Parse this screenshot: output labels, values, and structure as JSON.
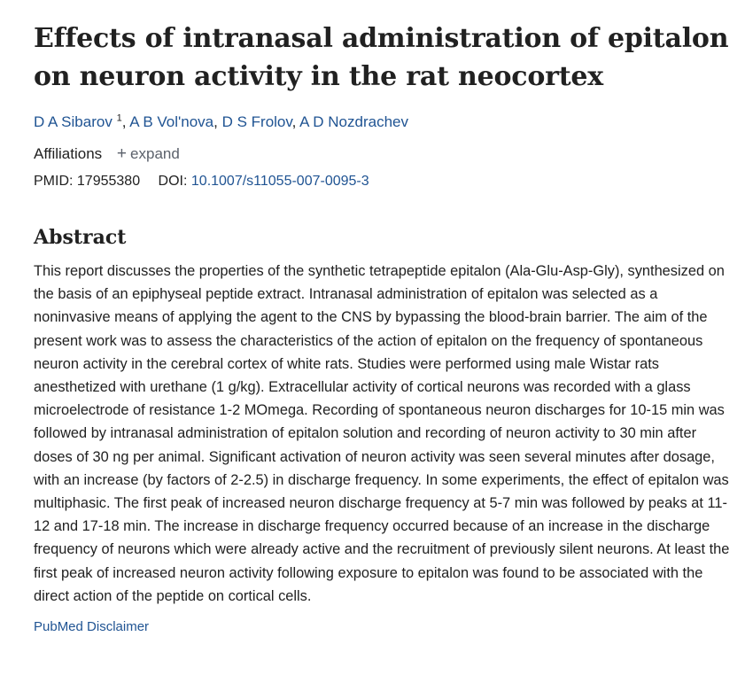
{
  "article": {
    "title": "Effects of intranasal administration of epitalon on neuron activity in the rat neocortex",
    "authors": [
      {
        "name": "D A Sibarov",
        "sup": "1"
      },
      {
        "name": "A B Vol'nova"
      },
      {
        "name": "D S Frolov"
      },
      {
        "name": "A D Nozdrachev"
      }
    ],
    "affiliations_label": "Affiliations",
    "expand_label": "expand",
    "pmid_label": "PMID:",
    "pmid": "17955380",
    "doi_label": "DOI:",
    "doi": "10.1007/s11055-007-0095-3"
  },
  "abstract": {
    "heading": "Abstract",
    "text": "This report discusses the properties of the synthetic tetrapeptide epitalon (Ala-Glu-Asp-Gly), synthesized on the basis of an epiphyseal peptide extract. Intranasal administration of epitalon was selected as a noninvasive means of applying the agent to the CNS by bypassing the blood-brain barrier. The aim of the present work was to assess the characteristics of the action of epitalon on the frequency of spontaneous neuron activity in the cerebral cortex of white rats. Studies were performed using male Wistar rats anesthetized with urethane (1 g/kg). Extracellular activity of cortical neurons was recorded with a glass microelectrode of resistance 1-2 MOmega. Recording of spontaneous neuron discharges for 10-15 min was followed by intranasal administration of epitalon solution and recording of neuron activity to 30 min after doses of 30 ng per animal. Significant activation of neuron activity was seen several minutes after dosage, with an increase (by factors of 2-2.5) in discharge frequency. In some experiments, the effect of epitalon was multiphasic. The first peak of increased neuron discharge frequency at 5-7 min was followed by peaks at 11-12 and 17-18 min. The increase in discharge frequency occurred because of an increase in the discharge frequency of neurons which were already active and the recruitment of previously silent neurons. At least the first peak of increased neuron activity following exposure to epitalon was found to be associated with the direct action of the peptide on cortical cells."
  },
  "footer": {
    "disclaimer_label": "PubMed Disclaimer"
  },
  "colors": {
    "link": "#205493",
    "text": "#212121",
    "muted": "#5b616b"
  },
  "icons": {
    "expand": "plus-icon"
  }
}
